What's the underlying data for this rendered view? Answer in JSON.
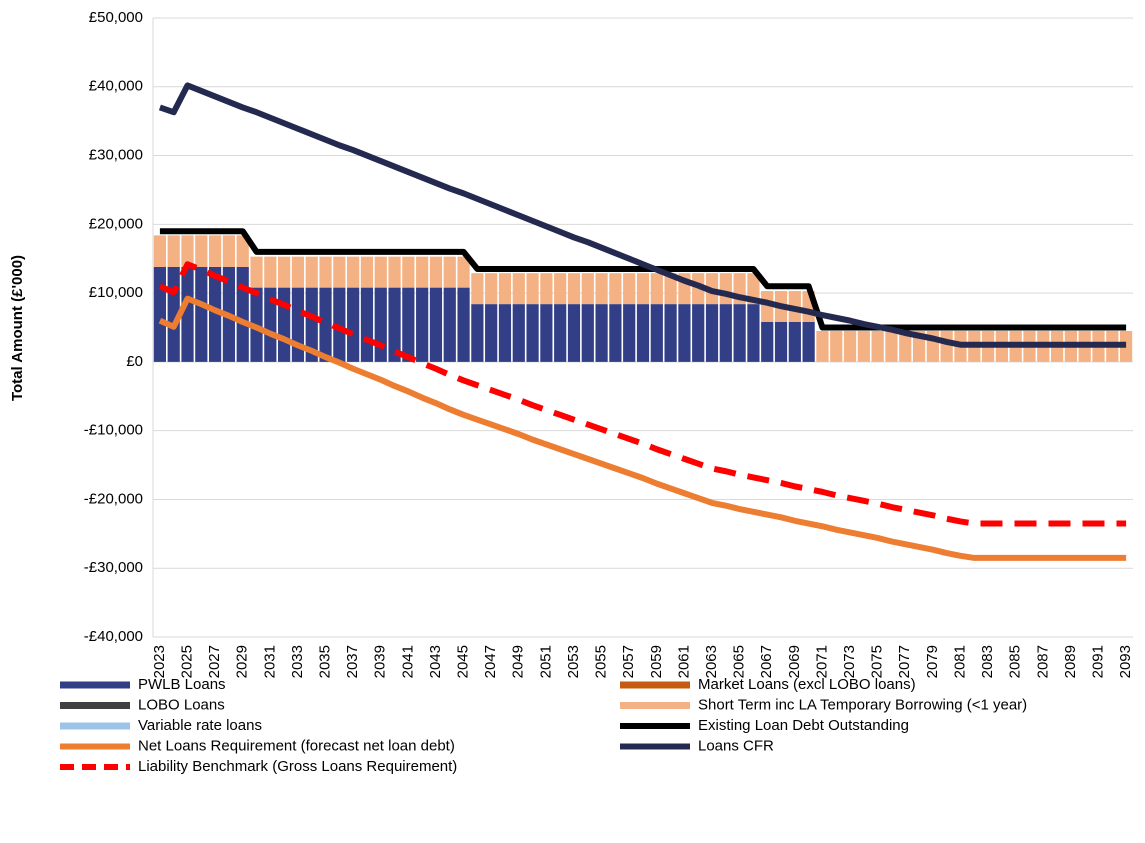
{
  "chart_data": {
    "type": "combo",
    "y_label": "Total Amount (£'000)",
    "categories": [
      "2023",
      null,
      "2025",
      null,
      "2027",
      null,
      "2029",
      null,
      "2031",
      null,
      "2033",
      null,
      "2035",
      null,
      "2037",
      null,
      "2039",
      null,
      "2041",
      null,
      "2043",
      null,
      "2045",
      null,
      "2047",
      null,
      "2049",
      null,
      "2051",
      null,
      "2053",
      null,
      "2055",
      null,
      "2057",
      null,
      "2059",
      null,
      "2061",
      null,
      "2063",
      null,
      "2065",
      null,
      "2067",
      null,
      "2069",
      null,
      "2071",
      null,
      "2073",
      null,
      "2075",
      null,
      "2077",
      null,
      "2079",
      null,
      "2081",
      null,
      "2083",
      null,
      "2085",
      null,
      "2087",
      null,
      "2089",
      null,
      "2091",
      null,
      "2093"
    ],
    "ylim": [
      -40000,
      50000
    ],
    "yticks": [
      {
        "value": -40000,
        "label": "-£40,000"
      },
      {
        "value": -30000,
        "label": "-£30,000"
      },
      {
        "value": -20000,
        "label": "-£20,000"
      },
      {
        "value": -10000,
        "label": "-£10,000"
      },
      {
        "value": 0,
        "label": "£0"
      },
      {
        "value": 10000,
        "label": "£10,000"
      },
      {
        "value": 20000,
        "label": "£20,000"
      },
      {
        "value": 30000,
        "label": "£30,000"
      },
      {
        "value": 40000,
        "label": "£40,000"
      },
      {
        "value": 50000,
        "label": "£50,000"
      }
    ],
    "grid": true,
    "series": [
      {
        "name": "PWLB Loans",
        "kind": "bar",
        "color": "#323e85",
        "values": [
          13800,
          13800,
          13800,
          13800,
          13800,
          13800,
          13800,
          10800,
          10800,
          10800,
          10800,
          10800,
          10800,
          10800,
          10800,
          10800,
          10800,
          10800,
          10800,
          10800,
          10800,
          10800,
          10800,
          8400,
          8400,
          8400,
          8400,
          8400,
          8400,
          8400,
          8400,
          8400,
          8400,
          8400,
          8400,
          8400,
          8400,
          8400,
          8400,
          8400,
          8400,
          8400,
          8400,
          8400,
          5800,
          5800,
          5800,
          5800,
          0,
          0,
          0,
          0,
          0,
          0,
          0,
          0,
          0,
          0,
          0,
          0,
          0,
          0,
          0,
          0,
          0,
          0,
          0,
          0,
          0,
          0,
          0
        ]
      },
      {
        "name": "Market Loans (excl LOBO loans)",
        "kind": "bar",
        "color": "#c55a11",
        "values": [
          0,
          0,
          0,
          0,
          0,
          0,
          0,
          0,
          0,
          0,
          0,
          0,
          0,
          0,
          0,
          0,
          0,
          0,
          0,
          0,
          0,
          0,
          0,
          0,
          0,
          0,
          0,
          0,
          0,
          0,
          0,
          0,
          0,
          0,
          0,
          0,
          0,
          0,
          0,
          0,
          0,
          0,
          0,
          0,
          0,
          0,
          0,
          0,
          0,
          0,
          0,
          0,
          0,
          0,
          0,
          0,
          0,
          0,
          0,
          0,
          0,
          0,
          0,
          0,
          0,
          0,
          0,
          0,
          0,
          0,
          0
        ]
      },
      {
        "name": "LOBO Loans",
        "kind": "bar",
        "color": "#404040",
        "values": [
          0,
          0,
          0,
          0,
          0,
          0,
          0,
          0,
          0,
          0,
          0,
          0,
          0,
          0,
          0,
          0,
          0,
          0,
          0,
          0,
          0,
          0,
          0,
          0,
          0,
          0,
          0,
          0,
          0,
          0,
          0,
          0,
          0,
          0,
          0,
          0,
          0,
          0,
          0,
          0,
          0,
          0,
          0,
          0,
          0,
          0,
          0,
          0,
          0,
          0,
          0,
          0,
          0,
          0,
          0,
          0,
          0,
          0,
          0,
          0,
          0,
          0,
          0,
          0,
          0,
          0,
          0,
          0,
          0,
          0,
          0
        ]
      },
      {
        "name": "Short Term inc LA Temporary Borrowing (<1 year)",
        "kind": "bar",
        "color": "#f4b183",
        "values": [
          4600,
          4600,
          4600,
          4600,
          4600,
          4600,
          4600,
          4500,
          4500,
          4500,
          4500,
          4500,
          4500,
          4500,
          4500,
          4500,
          4500,
          4500,
          4500,
          4500,
          4500,
          4500,
          4500,
          4500,
          4500,
          4500,
          4500,
          4500,
          4500,
          4500,
          4500,
          4500,
          4500,
          4500,
          4500,
          4500,
          4500,
          4500,
          4500,
          4500,
          4500,
          4500,
          4500,
          4500,
          4500,
          4500,
          4500,
          4500,
          4500,
          4500,
          4500,
          4500,
          4500,
          4500,
          4500,
          4500,
          4500,
          4500,
          4500,
          4500,
          4500,
          4500,
          4500,
          4500,
          4500,
          4500,
          4500,
          4500,
          4500,
          4500,
          4500
        ]
      },
      {
        "name": "Variable rate loans",
        "kind": "bar",
        "color": "#9dc3e6",
        "values": [
          0,
          0,
          0,
          0,
          0,
          0,
          0,
          0,
          0,
          0,
          0,
          0,
          0,
          0,
          0,
          0,
          0,
          0,
          0,
          0,
          0,
          0,
          0,
          0,
          0,
          0,
          0,
          0,
          0,
          0,
          0,
          0,
          0,
          0,
          0,
          0,
          0,
          0,
          0,
          0,
          0,
          0,
          0,
          0,
          0,
          0,
          0,
          0,
          0,
          0,
          0,
          0,
          0,
          0,
          0,
          0,
          0,
          0,
          0,
          0,
          0,
          0,
          0,
          0,
          0,
          0,
          0,
          0,
          0,
          0,
          0
        ]
      },
      {
        "name": "Existing Loan Debt Outstanding",
        "kind": "line",
        "color": "#000000",
        "values": [
          19000,
          19000,
          19000,
          19000,
          19000,
          19000,
          19000,
          16000,
          16000,
          16000,
          16000,
          16000,
          16000,
          16000,
          16000,
          16000,
          16000,
          16000,
          16000,
          16000,
          16000,
          16000,
          16000,
          13500,
          13500,
          13500,
          13500,
          13500,
          13500,
          13500,
          13500,
          13500,
          13500,
          13500,
          13500,
          13500,
          13500,
          13500,
          13500,
          13500,
          13500,
          13500,
          13500,
          13500,
          11000,
          11000,
          11000,
          11000,
          5000,
          5000,
          5000,
          5000,
          5000,
          5000,
          5000,
          5000,
          5000,
          5000,
          5000,
          5000,
          5000,
          5000,
          5000,
          5000,
          5000,
          5000,
          5000,
          5000,
          5000,
          5000,
          5000
        ]
      },
      {
        "name": "Net Loans Requirement (forecast net loan debt)",
        "kind": "line",
        "color": "#ed7d31",
        "values": [
          6000,
          5100,
          9200,
          8400,
          7500,
          6700,
          5800,
          5000,
          4100,
          3300,
          2400,
          1600,
          700,
          -100,
          -1000,
          -1800,
          -2600,
          -3500,
          -4300,
          -5200,
          -6000,
          -6900,
          -7700,
          -8400,
          -9100,
          -9800,
          -10500,
          -11300,
          -12000,
          -12700,
          -13400,
          -14100,
          -14800,
          -15500,
          -16200,
          -16900,
          -17700,
          -18400,
          -19100,
          -19800,
          -20500,
          -20900,
          -21400,
          -21800,
          -22200,
          -22600,
          -23100,
          -23500,
          -23900,
          -24400,
          -24800,
          -25200,
          -25600,
          -26100,
          -26500,
          -26900,
          -27300,
          -27800,
          -28200,
          -28500,
          -28500,
          -28500,
          -28500,
          -28500,
          -28500,
          -28500,
          -28500,
          -28500,
          -28500,
          -28500,
          -28500
        ]
      },
      {
        "name": "Loans CFR",
        "kind": "line",
        "color": "#24294f",
        "values": [
          37000,
          36300,
          40200,
          39400,
          38600,
          37800,
          37000,
          36300,
          35500,
          34700,
          33900,
          33100,
          32300,
          31500,
          30800,
          30000,
          29200,
          28400,
          27600,
          26800,
          26000,
          25200,
          24500,
          23700,
          22900,
          22100,
          21300,
          20500,
          19700,
          18900,
          18100,
          17400,
          16600,
          15800,
          15000,
          14200,
          13400,
          12600,
          11800,
          11100,
          10300,
          9900,
          9400,
          9000,
          8600,
          8100,
          7700,
          7300,
          6800,
          6400,
          6000,
          5500,
          5100,
          4700,
          4200,
          3800,
          3400,
          2900,
          2500,
          2500,
          2500,
          2500,
          2500,
          2500,
          2500,
          2500,
          2500,
          2500,
          2500,
          2500,
          2500
        ]
      },
      {
        "name": "Liability Benchmark (Gross Loans Requirement)",
        "kind": "line",
        "dashed": true,
        "color": "#ff0000",
        "values": [
          11000,
          10100,
          14200,
          13400,
          12500,
          11700,
          10800,
          10000,
          9100,
          8300,
          7400,
          6600,
          5700,
          4900,
          4000,
          3200,
          2400,
          1500,
          700,
          -200,
          -1000,
          -1900,
          -2700,
          -3400,
          -4100,
          -4800,
          -5500,
          -6300,
          -7000,
          -7700,
          -8400,
          -9100,
          -9800,
          -10500,
          -11200,
          -11900,
          -12700,
          -13400,
          -14100,
          -14800,
          -15500,
          -15900,
          -16400,
          -16800,
          -17200,
          -17600,
          -18100,
          -18500,
          -18900,
          -19400,
          -19800,
          -20200,
          -20600,
          -21100,
          -21500,
          -21900,
          -22300,
          -22800,
          -23200,
          -23500,
          -23500,
          -23500,
          -23500,
          -23500,
          -23500,
          -23500,
          -23500,
          -23500,
          -23500,
          -23500,
          -23500
        ]
      }
    ]
  }
}
